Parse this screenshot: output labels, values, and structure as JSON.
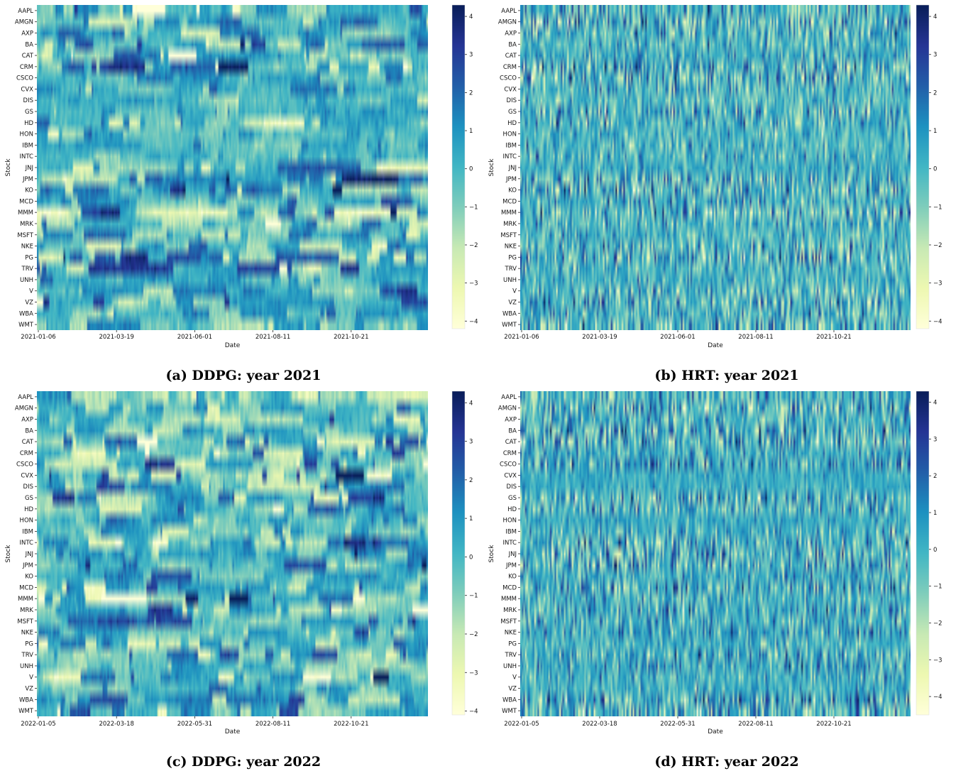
{
  "figure": {
    "stocks": [
      "AAPL",
      "AMGN",
      "AXP",
      "BA",
      "CAT",
      "CRM",
      "CSCO",
      "CVX",
      "DIS",
      "GS",
      "HD",
      "HON",
      "IBM",
      "INTC",
      "JNJ",
      "JPM",
      "KO",
      "MCD",
      "MMM",
      "MRK",
      "MSFT",
      "NKE",
      "PG",
      "TRV",
      "UNH",
      "V",
      "VZ",
      "WBA",
      "WMT"
    ],
    "colormap": {
      "name": "YlGnBu",
      "low": "#ffffd9",
      "mid": "#41b6c4",
      "high": "#081d58"
    }
  },
  "chart_data": [
    {
      "type": "heatmap",
      "panel": "a",
      "caption": "(a) DDPG: year 2021",
      "xlabel": "Date",
      "ylabel": "Stock",
      "x_tick_labels": [
        "2021-01-06",
        "2021-03-19",
        "2021-06-01",
        "2021-08-11",
        "2021-10-21"
      ],
      "colorbar_ticks": [
        "4",
        "3",
        "2",
        "1",
        "0",
        "−1",
        "−2",
        "−3",
        "−4"
      ],
      "value_range": [
        -4.2,
        4.3
      ],
      "n_dates": 250,
      "cell_values": "per-stock daily values in [-4.2, 4.3]; persistent regimes over time"
    },
    {
      "type": "heatmap",
      "panel": "b",
      "caption": "(b) HRT: year 2021",
      "xlabel": "Date",
      "ylabel": "Stock",
      "x_tick_labels": [
        "2021-01-06",
        "2021-03-19",
        "2021-06-01",
        "2021-08-11",
        "2021-10-21"
      ],
      "colorbar_ticks": [
        "4",
        "3",
        "2",
        "1",
        "0",
        "−1",
        "−2",
        "−3",
        "−4"
      ],
      "value_range": [
        -4.2,
        4.3
      ],
      "n_dates": 250,
      "cell_values": "per-stock daily values in [-4.2, 4.3]; rapidly varying day to day"
    },
    {
      "type": "heatmap",
      "panel": "c",
      "caption": "(c) DDPG: year 2022",
      "xlabel": "Date",
      "ylabel": "Stock",
      "x_tick_labels": [
        "2022-01-05",
        "2022-03-18",
        "2022-05-31",
        "2022-08-11",
        "2022-10-21"
      ],
      "colorbar_ticks": [
        "4",
        "3",
        "2",
        "1",
        "0",
        "−1",
        "−2",
        "−3",
        "−4"
      ],
      "value_range": [
        -4.1,
        4.3
      ],
      "n_dates": 250,
      "cell_values": "per-stock daily values in [-4.1, 4.3]; persistent regimes over time"
    },
    {
      "type": "heatmap",
      "panel": "d",
      "caption": "(d) HRT: year 2022",
      "xlabel": "Date",
      "ylabel": "Stock",
      "x_tick_labels": [
        "2022-01-05",
        "2022-03-18",
        "2022-05-31",
        "2022-08-11",
        "2022-10-21"
      ],
      "colorbar_ticks": [
        "4",
        "3",
        "2",
        "1",
        "0",
        "−1",
        "−2",
        "−3",
        "−4"
      ],
      "value_range": [
        -4.5,
        4.3
      ],
      "n_dates": 250,
      "cell_values": "per-stock daily values in [-4.5, 4.3]; rapidly varying day to day"
    }
  ]
}
